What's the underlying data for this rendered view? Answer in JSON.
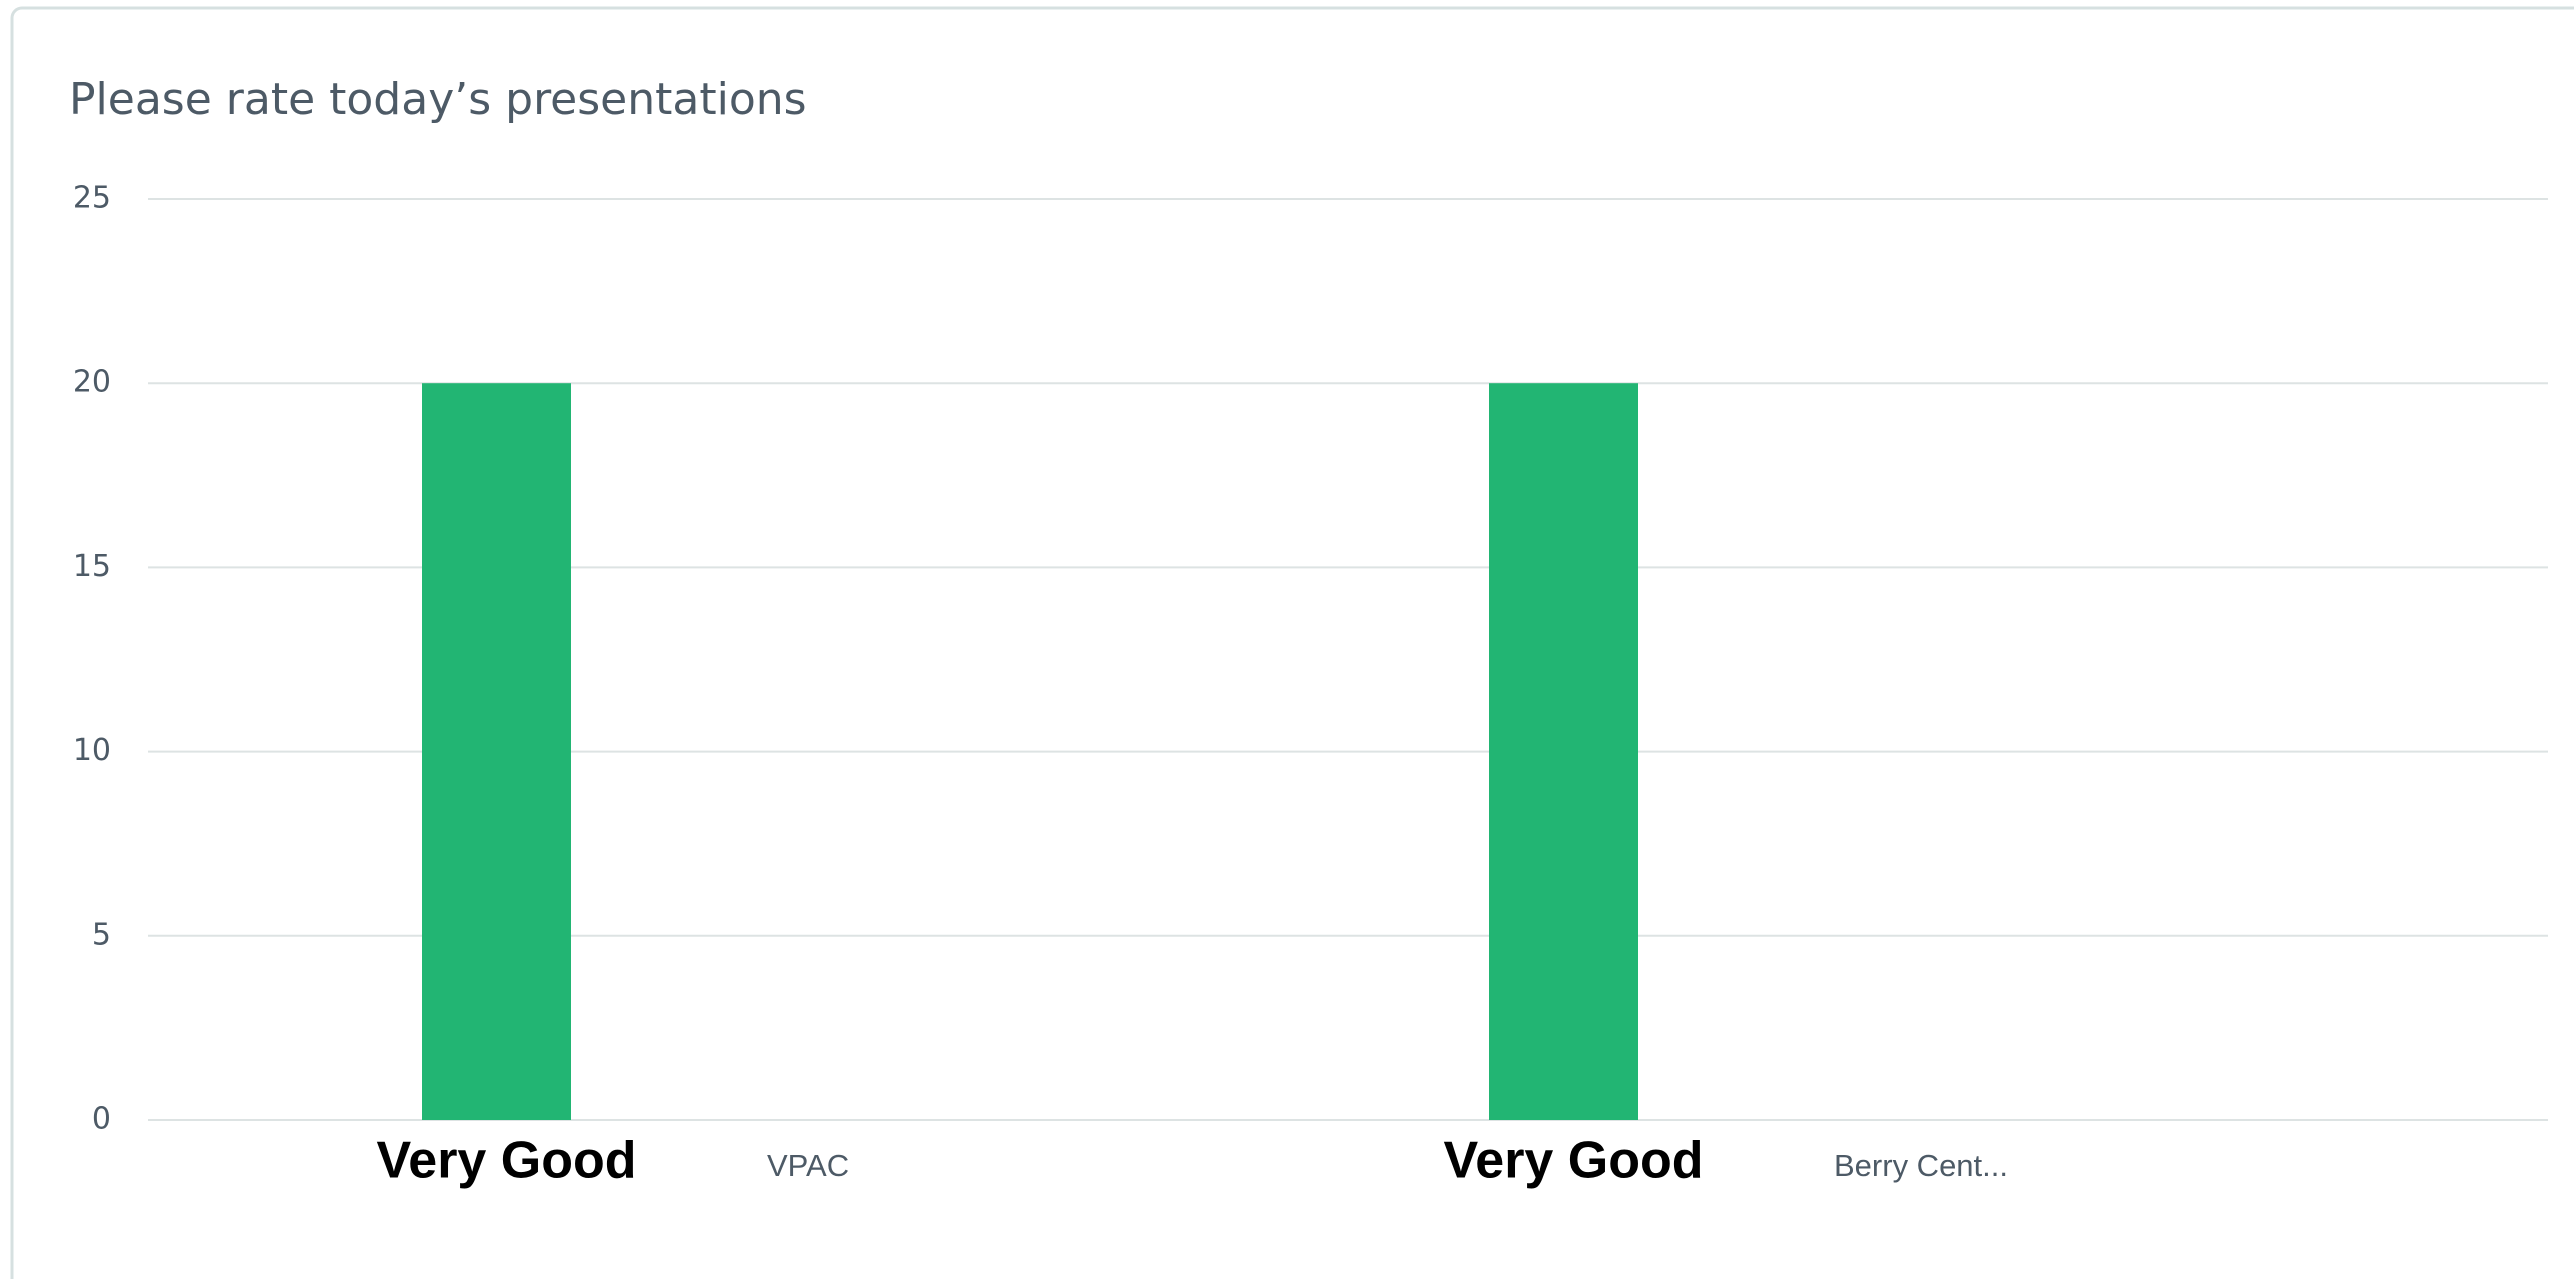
{
  "chart_data": {
    "type": "bar",
    "title": "Please rate today’s presentations",
    "categories": [
      "VPAC",
      "Berry Cent..."
    ],
    "series": [
      {
        "name": "Very Good",
        "color": "#22b573",
        "values": [
          20,
          20
        ]
      }
    ],
    "ylim": [
      0,
      25
    ],
    "yticks": [
      0,
      5,
      10,
      15,
      20,
      25
    ],
    "grid": true
  }
}
